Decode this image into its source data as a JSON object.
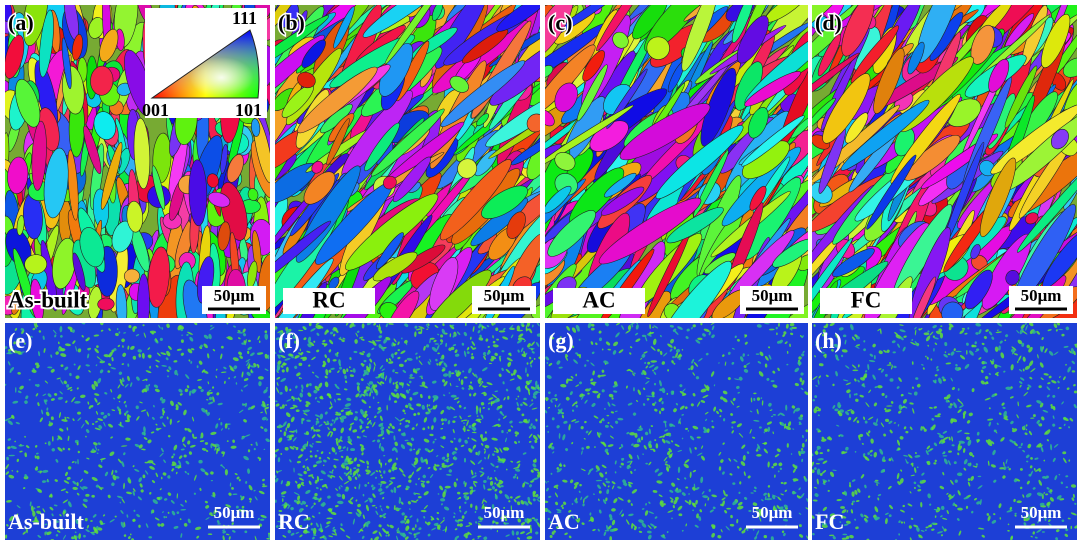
{
  "panels": [
    {
      "label": "(a)",
      "caption": "As-built",
      "scale_bar": "50μm"
    },
    {
      "label": "(b)",
      "caption": "RC",
      "scale_bar": "50μm"
    },
    {
      "label": "(c)",
      "caption": "AC",
      "scale_bar": "50μm"
    },
    {
      "label": "(d)",
      "caption": "FC",
      "scale_bar": "50μm"
    },
    {
      "label": "(e)",
      "caption": "As-built",
      "scale_bar": "50μm"
    },
    {
      "label": "(f)",
      "caption": "RC",
      "scale_bar": "50μm"
    },
    {
      "label": "(g)",
      "caption": "AC",
      "scale_bar": "50μm"
    },
    {
      "label": "(h)",
      "caption": "FC",
      "scale_bar": "50μm"
    }
  ],
  "legend": {
    "top": "111",
    "left": "001",
    "right": "101"
  }
}
